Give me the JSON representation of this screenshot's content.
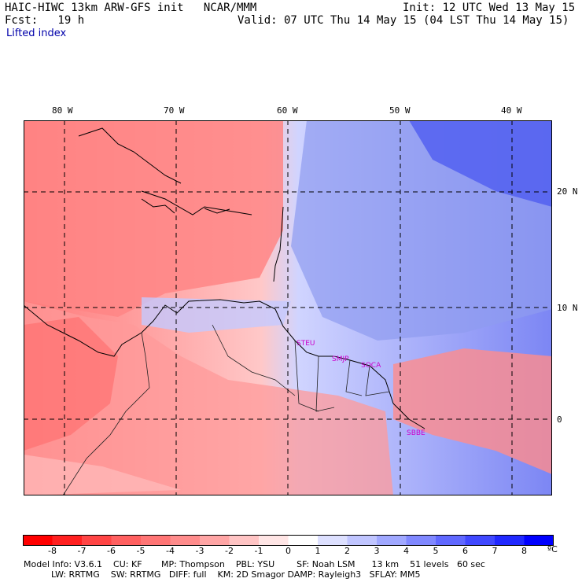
{
  "header": {
    "title": "HAIC-HIWC 13km ARW-GFS init   NCAR/MMM",
    "init": "Init: 12 UTC Wed 13 May 15",
    "fcst": "Fcst:   19 h",
    "valid": "Valid: 07 UTC Thu 14 May 15 (04 LST Thu 14 May 15)",
    "field": "Lifted index"
  },
  "axes": {
    "lon_labels": [
      "80 W",
      "70 W",
      "60 W",
      "50 W",
      "40 W"
    ],
    "lat_labels": [
      "20 N",
      "10 N",
      "0"
    ]
  },
  "stations": [
    "STEU",
    "SMJP",
    "SOCA",
    "SBBE"
  ],
  "colorbar": {
    "ticks": [
      "-8",
      "-7",
      "-6",
      "-5",
      "-4",
      "-3",
      "-2",
      "-1",
      "0",
      "1",
      "2",
      "3",
      "4",
      "5",
      "6",
      "7",
      "8"
    ],
    "unit": "ºC",
    "colors": [
      "#ff0000",
      "#ff2020",
      "#ff4545",
      "#ff6060",
      "#ff7575",
      "#ff8c8c",
      "#ffa5a5",
      "#ffc4c4",
      "#ffe5e5",
      "#ffffff",
      "#dde0ff",
      "#c0c5ff",
      "#a0a8ff",
      "#8088ff",
      "#6068ff",
      "#4048ff",
      "#2028ff",
      "#0000ff"
    ]
  },
  "footer": {
    "line1": "Model Info: V3.6.1    CU: KF       MP: Thompson    PBL: YSU        SF: Noah LSM      13 km    51 levels   60 sec",
    "line2": "          LW: RRTMG    SW: RRTMG   DIFF: full    KM: 2D Smagor DAMP: Rayleigh3   SFLAY: MM5"
  },
  "colors": {
    "warm": "#ff7070",
    "cool": "#8f9bf0",
    "station": "#cc00cc"
  }
}
